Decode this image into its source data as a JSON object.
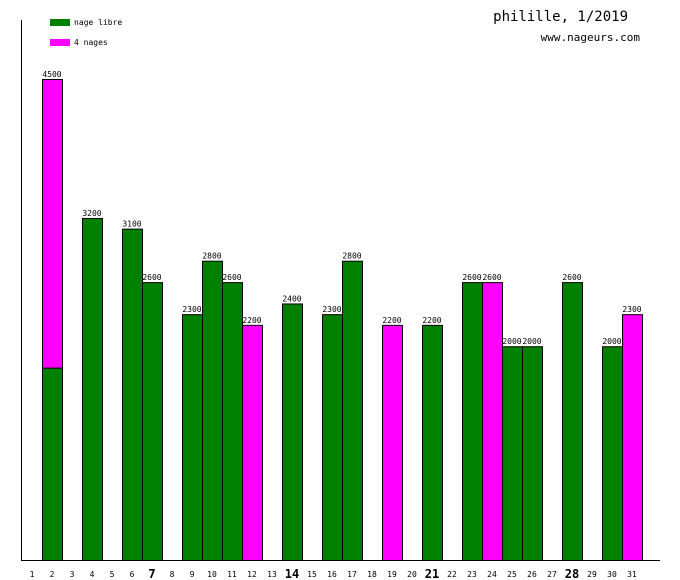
{
  "title": "philille, 1/2019",
  "site": "www.nageurs.com",
  "colors": {
    "freestyle": "#008000",
    "medley": "#ff00ff",
    "axis": "#000000",
    "outline": "#000000"
  },
  "chart_data": {
    "type": "bar",
    "stacked": true,
    "ylim": [
      0,
      4500
    ],
    "grid": false,
    "legend_position": "top-left",
    "categories": [
      "1",
      "2",
      "3",
      "4",
      "5",
      "6",
      "7",
      "8",
      "9",
      "10",
      "11",
      "12",
      "13",
      "14",
      "15",
      "16",
      "17",
      "18",
      "19",
      "20",
      "21",
      "22",
      "23",
      "24",
      "25",
      "26",
      "27",
      "28",
      "29",
      "30",
      "31"
    ],
    "bold_categories": [
      "7",
      "14",
      "21",
      "28"
    ],
    "series": [
      {
        "name": "nage libre",
        "values": [
          0,
          1800,
          0,
          3200,
          0,
          3100,
          2600,
          0,
          2300,
          2800,
          2600,
          0,
          0,
          2400,
          0,
          2300,
          2800,
          0,
          0,
          0,
          2200,
          0,
          2600,
          0,
          2000,
          2000,
          0,
          2600,
          0,
          2000,
          0
        ]
      },
      {
        "name": "4 nages",
        "values": [
          0,
          2700,
          0,
          0,
          0,
          0,
          0,
          0,
          0,
          0,
          0,
          2200,
          0,
          0,
          0,
          0,
          0,
          0,
          2200,
          0,
          0,
          0,
          0,
          2600,
          0,
          0,
          0,
          0,
          0,
          0,
          2300
        ]
      }
    ],
    "total_labels": [
      "",
      "4500",
      "",
      "3200",
      "",
      "3100",
      "2600",
      "",
      "2300",
      "2800",
      "2600",
      "2200",
      "",
      "2400",
      "",
      "2300",
      "2800",
      "",
      "2200",
      "",
      "2200",
      "",
      "2600",
      "2600",
      "2000",
      "2000",
      "",
      "2600",
      "",
      "2000",
      "2300"
    ]
  }
}
